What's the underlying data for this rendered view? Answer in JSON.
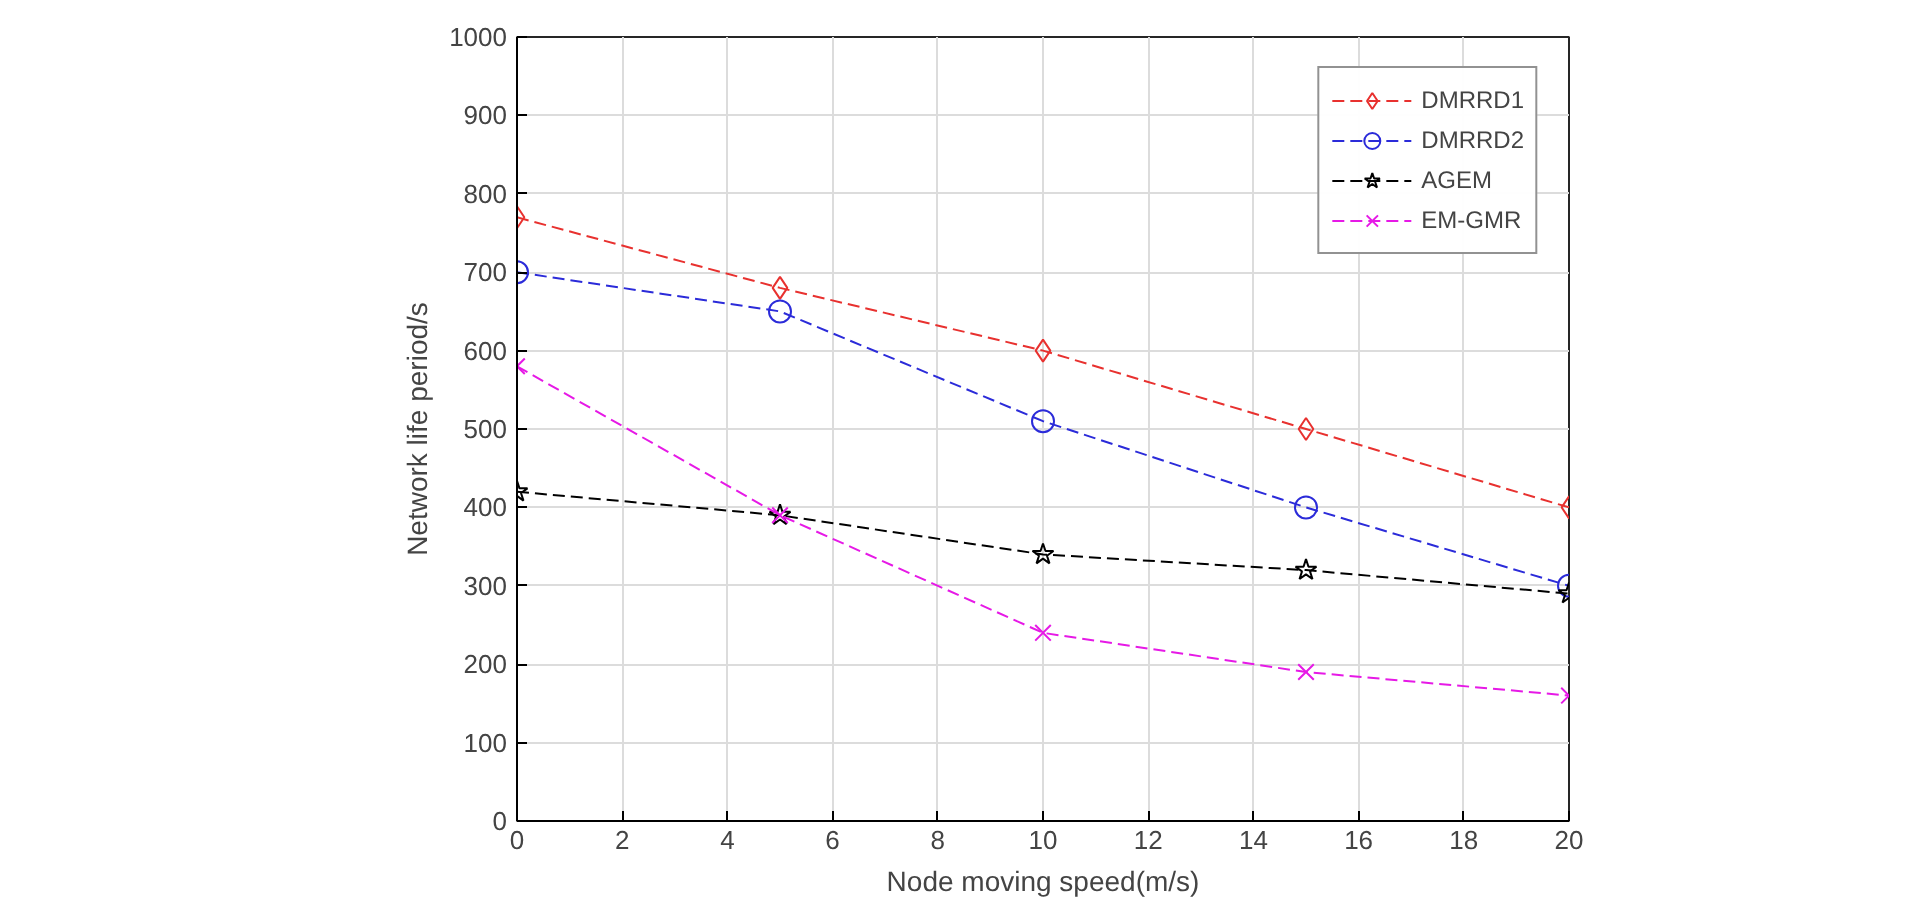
{
  "chart_data": {
    "type": "line",
    "xlabel": "Node moving speed(m/s)",
    "ylabel": "Network life period/s",
    "x": [
      0,
      5,
      10,
      15,
      20
    ],
    "series": [
      {
        "name": "DMRRD1",
        "color": "#e8312f",
        "marker": "diamond",
        "values": [
          770,
          680,
          600,
          500,
          400
        ]
      },
      {
        "name": "DMRRD2",
        "color": "#2b2bd9",
        "marker": "circle",
        "values": [
          700,
          650,
          510,
          400,
          300
        ]
      },
      {
        "name": "AGEM",
        "color": "#000000",
        "marker": "star",
        "values": [
          420,
          390,
          340,
          320,
          290
        ]
      },
      {
        "name": "EM-GMR",
        "color": "#e619e6",
        "marker": "cross",
        "values": [
          580,
          390,
          240,
          190,
          160
        ]
      }
    ],
    "xlim": [
      0,
      20
    ],
    "xticks": [
      0,
      2,
      4,
      6,
      8,
      10,
      12,
      14,
      16,
      18,
      20
    ],
    "ylim": [
      0,
      1000
    ],
    "yticks": [
      0,
      100,
      200,
      300,
      400,
      500,
      600,
      700,
      800,
      900,
      1000
    ],
    "grid": true,
    "legend": "top right",
    "line_style": "dashed"
  }
}
